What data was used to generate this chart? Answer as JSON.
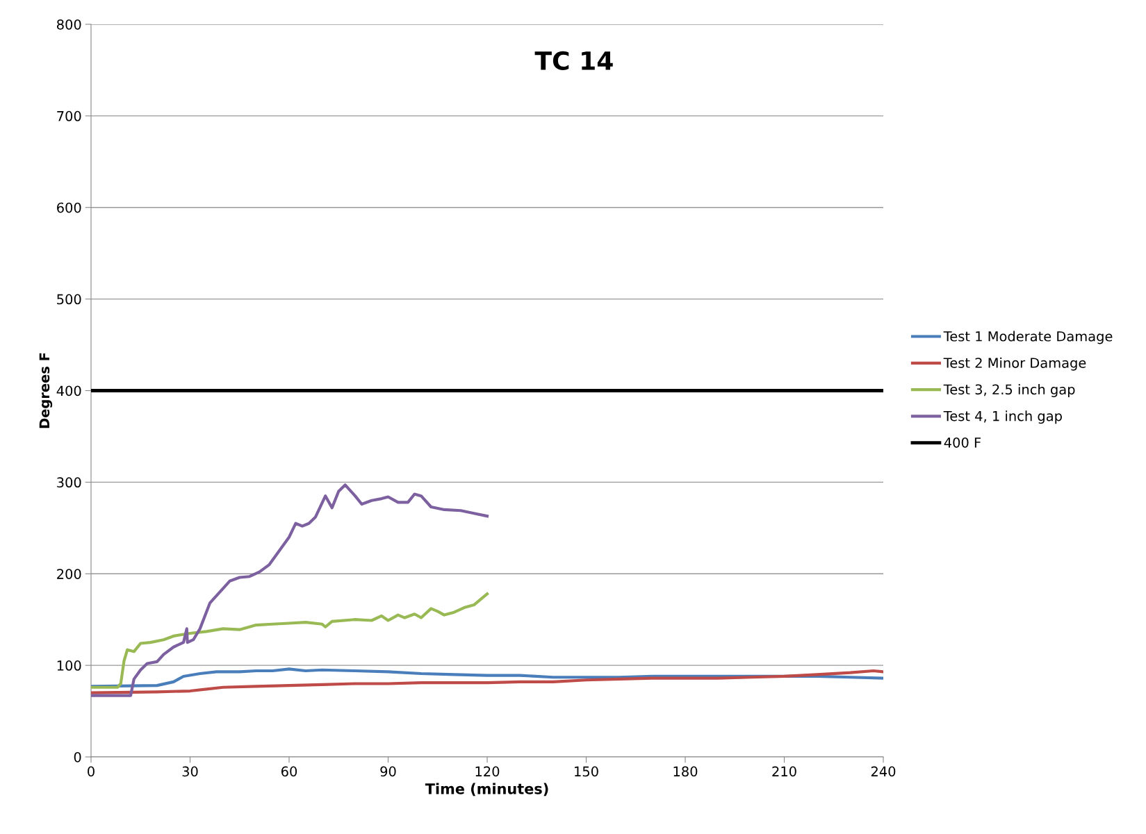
{
  "chart_data": {
    "type": "line",
    "title": "TC 14",
    "xlabel": "Time (minutes)",
    "ylabel": "Degrees F",
    "xlim": [
      0,
      240
    ],
    "xticks": [
      0,
      30,
      60,
      90,
      120,
      150,
      180,
      210,
      240
    ],
    "ylim": [
      0,
      800
    ],
    "yticks": [
      0,
      100,
      200,
      300,
      400,
      500,
      600,
      700,
      800
    ],
    "grid": "y",
    "legend": "right",
    "marker": "none",
    "line_style": "solid",
    "series": [
      {
        "name": "Test 1 Moderate Damage",
        "color": "#4a7ebb",
        "x": [
          0,
          20,
          25,
          28,
          33,
          38,
          45,
          50,
          55,
          60,
          65,
          70,
          80,
          90,
          100,
          110,
          120,
          130,
          140,
          150,
          160,
          170,
          180,
          190,
          200,
          210,
          220,
          230,
          240
        ],
        "values": [
          77,
          78,
          82,
          88,
          91,
          93,
          93,
          94,
          94,
          96,
          94,
          95,
          94,
          93,
          91,
          90,
          89,
          89,
          87,
          87,
          87,
          88,
          88,
          88,
          88,
          88,
          88,
          87,
          86
        ]
      },
      {
        "name": "Test 2 Minor Damage",
        "color": "#be4b48",
        "x": [
          0,
          20,
          30,
          35,
          40,
          50,
          60,
          70,
          80,
          90,
          100,
          110,
          120,
          130,
          140,
          150,
          160,
          170,
          180,
          190,
          200,
          210,
          220,
          230,
          237,
          240
        ],
        "values": [
          70,
          71,
          72,
          74,
          76,
          77,
          78,
          79,
          80,
          80,
          81,
          81,
          81,
          82,
          82,
          84,
          85,
          86,
          86,
          86,
          87,
          88,
          90,
          92,
          94,
          93
        ]
      },
      {
        "name": "Test 3, 2.5 inch gap",
        "color": "#98b954",
        "x": [
          0,
          8,
          9,
          10,
          11,
          13,
          15,
          18,
          22,
          25,
          30,
          35,
          40,
          45,
          50,
          55,
          60,
          65,
          70,
          71,
          73,
          80,
          85,
          88,
          90,
          93,
          95,
          98,
          100,
          103,
          105,
          107,
          110,
          113,
          116,
          118,
          120
        ],
        "values": [
          76,
          76,
          80,
          105,
          117,
          115,
          124,
          125,
          128,
          132,
          135,
          137,
          140,
          139,
          144,
          145,
          146,
          147,
          145,
          142,
          148,
          150,
          149,
          154,
          149,
          155,
          152,
          156,
          152,
          162,
          159,
          155,
          158,
          163,
          166,
          172,
          178
        ]
      },
      {
        "name": "Test 4, 1 inch gap",
        "color": "#7d60a0",
        "x": [
          0,
          12,
          13,
          15,
          17,
          20,
          22,
          25,
          28,
          29,
          29.2,
          31,
          33,
          36,
          39,
          42,
          45,
          48,
          51,
          54,
          57,
          60,
          62,
          64,
          66,
          68,
          71,
          73,
          75,
          77,
          80,
          82,
          85,
          88,
          90,
          93,
          96,
          98,
          100,
          103,
          107,
          112,
          116,
          120
        ],
        "values": [
          67,
          67,
          85,
          95,
          102,
          104,
          112,
          120,
          125,
          140,
          125,
          128,
          140,
          168,
          180,
          192,
          196,
          197,
          202,
          210,
          225,
          240,
          255,
          252,
          255,
          262,
          285,
          272,
          290,
          297,
          285,
          276,
          280,
          282,
          284,
          278,
          278,
          287,
          285,
          273,
          270,
          269,
          266,
          263
        ]
      }
    ],
    "ref_lines": [
      {
        "axis": "y",
        "value": 400,
        "label": "400 F",
        "color": "#000000",
        "line_style": "solid"
      }
    ]
  }
}
